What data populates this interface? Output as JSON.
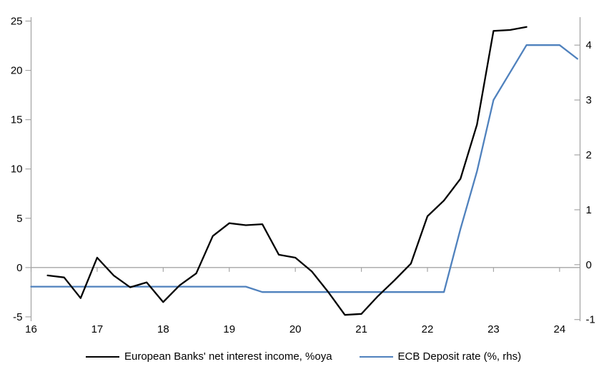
{
  "chart_data": {
    "type": "line",
    "title": "",
    "grid": "zero-line-only",
    "legend_position": "bottom",
    "axis_color": "#a6a6a6",
    "x_axis": {
      "ticks": [
        "16",
        "17",
        "18",
        "19",
        "20",
        "21",
        "22",
        "23",
        "24"
      ],
      "min": 16,
      "max": 24.31
    },
    "left_axis": {
      "ticks": [
        25,
        20,
        15,
        10,
        5,
        0,
        -5
      ],
      "min": -5.44,
      "max": 25.4
    },
    "right_axis": {
      "ticks": [
        4,
        3,
        2,
        1,
        0,
        -1
      ],
      "min": -1.03,
      "max": 4.51
    },
    "series": [
      {
        "id": "european-banks-nii",
        "name": "European Banks' net interest income, %oya",
        "axis": "left",
        "color": "#000000",
        "points": [
          [
            16.25,
            -0.8
          ],
          [
            16.5,
            -1.0
          ],
          [
            16.75,
            -3.1
          ],
          [
            17.0,
            1.0
          ],
          [
            17.25,
            -0.8
          ],
          [
            17.5,
            -2.0
          ],
          [
            17.75,
            -1.5
          ],
          [
            18.0,
            -3.5
          ],
          [
            18.25,
            -1.8
          ],
          [
            18.5,
            -0.6
          ],
          [
            18.75,
            3.2
          ],
          [
            19.0,
            4.5
          ],
          [
            19.25,
            4.3
          ],
          [
            19.5,
            4.4
          ],
          [
            19.75,
            1.3
          ],
          [
            20.0,
            1.0
          ],
          [
            20.25,
            -0.4
          ],
          [
            20.5,
            -2.5
          ],
          [
            20.75,
            -4.8
          ],
          [
            21.0,
            -4.7
          ],
          [
            21.25,
            -2.9
          ],
          [
            21.5,
            -1.3
          ],
          [
            21.75,
            0.4
          ],
          [
            22.0,
            5.2
          ],
          [
            22.25,
            6.8
          ],
          [
            22.5,
            9.0
          ],
          [
            22.75,
            14.5
          ],
          [
            23.0,
            24.0
          ],
          [
            23.25,
            24.1
          ],
          [
            23.5,
            24.4
          ]
        ]
      },
      {
        "id": "ecb-deposit-rate",
        "name": "ECB Deposit rate (%, rhs)",
        "axis": "right",
        "color": "#4f81bd",
        "points": [
          [
            16.0,
            -0.4
          ],
          [
            19.25,
            -0.4
          ],
          [
            19.5,
            -0.5
          ],
          [
            22.25,
            -0.5
          ],
          [
            22.5,
            0.65
          ],
          [
            22.75,
            1.7
          ],
          [
            23.0,
            3.0
          ],
          [
            23.25,
            3.5
          ],
          [
            23.5,
            4.0
          ],
          [
            24.0,
            4.0
          ],
          [
            24.27,
            3.75
          ]
        ]
      }
    ]
  }
}
